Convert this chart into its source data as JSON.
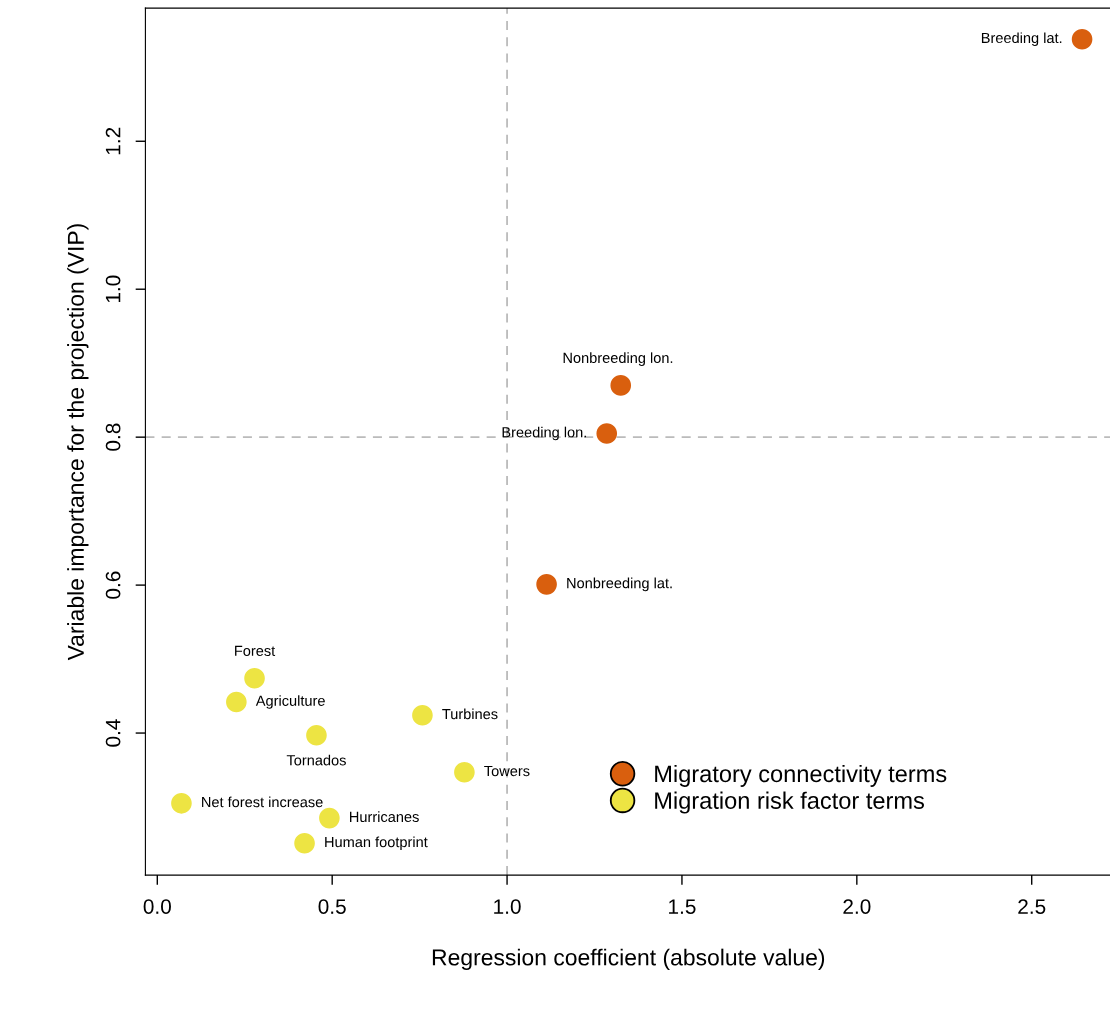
{
  "chart_data": {
    "type": "scatter",
    "xlabel": "Regression coefficient (absolute value)",
    "ylabel": "Variable importance for the projection (VIP)",
    "xlim": [
      -0.034,
      2.727
    ],
    "ylim": [
      0.208,
      1.38
    ],
    "xticks": [
      {
        "value": 0,
        "label": "0.0"
      },
      0.5,
      {
        "value": 1,
        "label": "1.0"
      },
      1.5,
      {
        "value": 2,
        "label": "2.0"
      },
      2.5
    ],
    "yticks": [
      0.4,
      0.6,
      0.8,
      {
        "value": 1,
        "label": "1.0"
      },
      1.2
    ],
    "grid": false,
    "legend": "bottom right",
    "marker": "circle",
    "series": [
      {
        "name": "Migratory connectivity terms",
        "color": "#d95f0e",
        "x": [
          2.644,
          1.325,
          1.285,
          1.113
        ],
        "values": [
          1.338,
          0.87,
          0.805,
          0.601
        ]
      },
      {
        "name": "Migration risk factor terms",
        "color": "#ede443",
        "x": [
          0.278,
          0.226,
          0.455,
          0.758,
          0.878,
          0.069,
          0.492,
          0.421
        ],
        "values": [
          0.474,
          0.442,
          0.397,
          0.424,
          0.347,
          0.305,
          0.285,
          0.251
        ]
      }
    ],
    "ref_lines": [
      {
        "axis": "x",
        "value": 1.0,
        "color": "#bbbbbb",
        "line_style": "dashed"
      },
      {
        "axis": "y",
        "value": 0.8,
        "color": "#bbbbbb",
        "line_style": "dashed"
      }
    ],
    "annotations": [
      {
        "text": "Breeding lat.",
        "x": 2.644,
        "y": 1.338
      },
      {
        "text": "Nonbreeding lon.",
        "x": 1.325,
        "y": 0.87
      },
      {
        "text": "Breeding lon.",
        "x": 1.285,
        "y": 0.805
      },
      {
        "text": "Nonbreeding lat.",
        "x": 1.113,
        "y": 0.601
      },
      {
        "text": "Forest",
        "x": 0.278,
        "y": 0.474
      },
      {
        "text": "Agriculture",
        "x": 0.226,
        "y": 0.442
      },
      {
        "text": "Tornados",
        "x": 0.455,
        "y": 0.397
      },
      {
        "text": "Turbines",
        "x": 0.758,
        "y": 0.424
      },
      {
        "text": "Towers",
        "x": 0.878,
        "y": 0.347
      },
      {
        "text": "Net forest increase",
        "x": 0.069,
        "y": 0.305
      },
      {
        "text": "Hurricanes",
        "x": 0.492,
        "y": 0.285
      },
      {
        "text": "Human footprint",
        "x": 0.421,
        "y": 0.251
      }
    ]
  }
}
